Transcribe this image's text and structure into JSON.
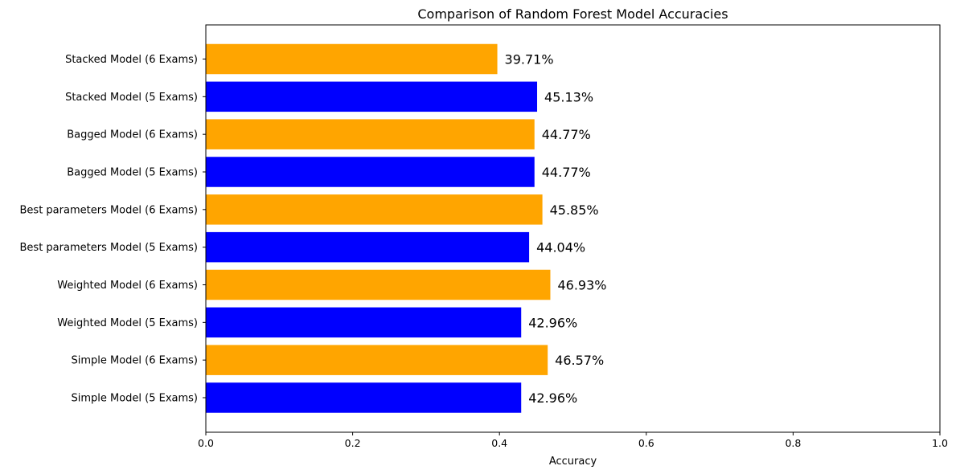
{
  "chart_data": {
    "type": "bar",
    "orientation": "horizontal",
    "title": "Comparison of Random Forest Model Accuracies",
    "xlabel": "Accuracy",
    "ylabel": "",
    "xlim": [
      0,
      1.0
    ],
    "xticks": [
      "0.0",
      "0.2",
      "0.4",
      "0.6",
      "0.8",
      "1.0"
    ],
    "grid": false,
    "categories": [
      "Simple Model (5 Exams)",
      "Simple Model (6 Exams)",
      "Weighted Model (5 Exams)",
      "Weighted Model (6 Exams)",
      "Best parameters Model (5 Exams)",
      "Best parameters Model (6 Exams)",
      "Bagged Model (5 Exams)",
      "Bagged Model (6 Exams)",
      "Stacked Model (5 Exams)",
      "Stacked Model (6 Exams)"
    ],
    "values": [
      0.4296,
      0.4657,
      0.4296,
      0.4693,
      0.4404,
      0.4585,
      0.4477,
      0.4477,
      0.4513,
      0.3971
    ],
    "data_labels": [
      "42.96%",
      "46.57%",
      "42.96%",
      "46.93%",
      "44.04%",
      "45.85%",
      "44.77%",
      "44.77%",
      "45.13%",
      "39.71%"
    ],
    "colors": [
      "#0000ff",
      "#ffa500",
      "#0000ff",
      "#ffa500",
      "#0000ff",
      "#ffa500",
      "#0000ff",
      "#ffa500",
      "#0000ff",
      "#ffa500"
    ]
  }
}
